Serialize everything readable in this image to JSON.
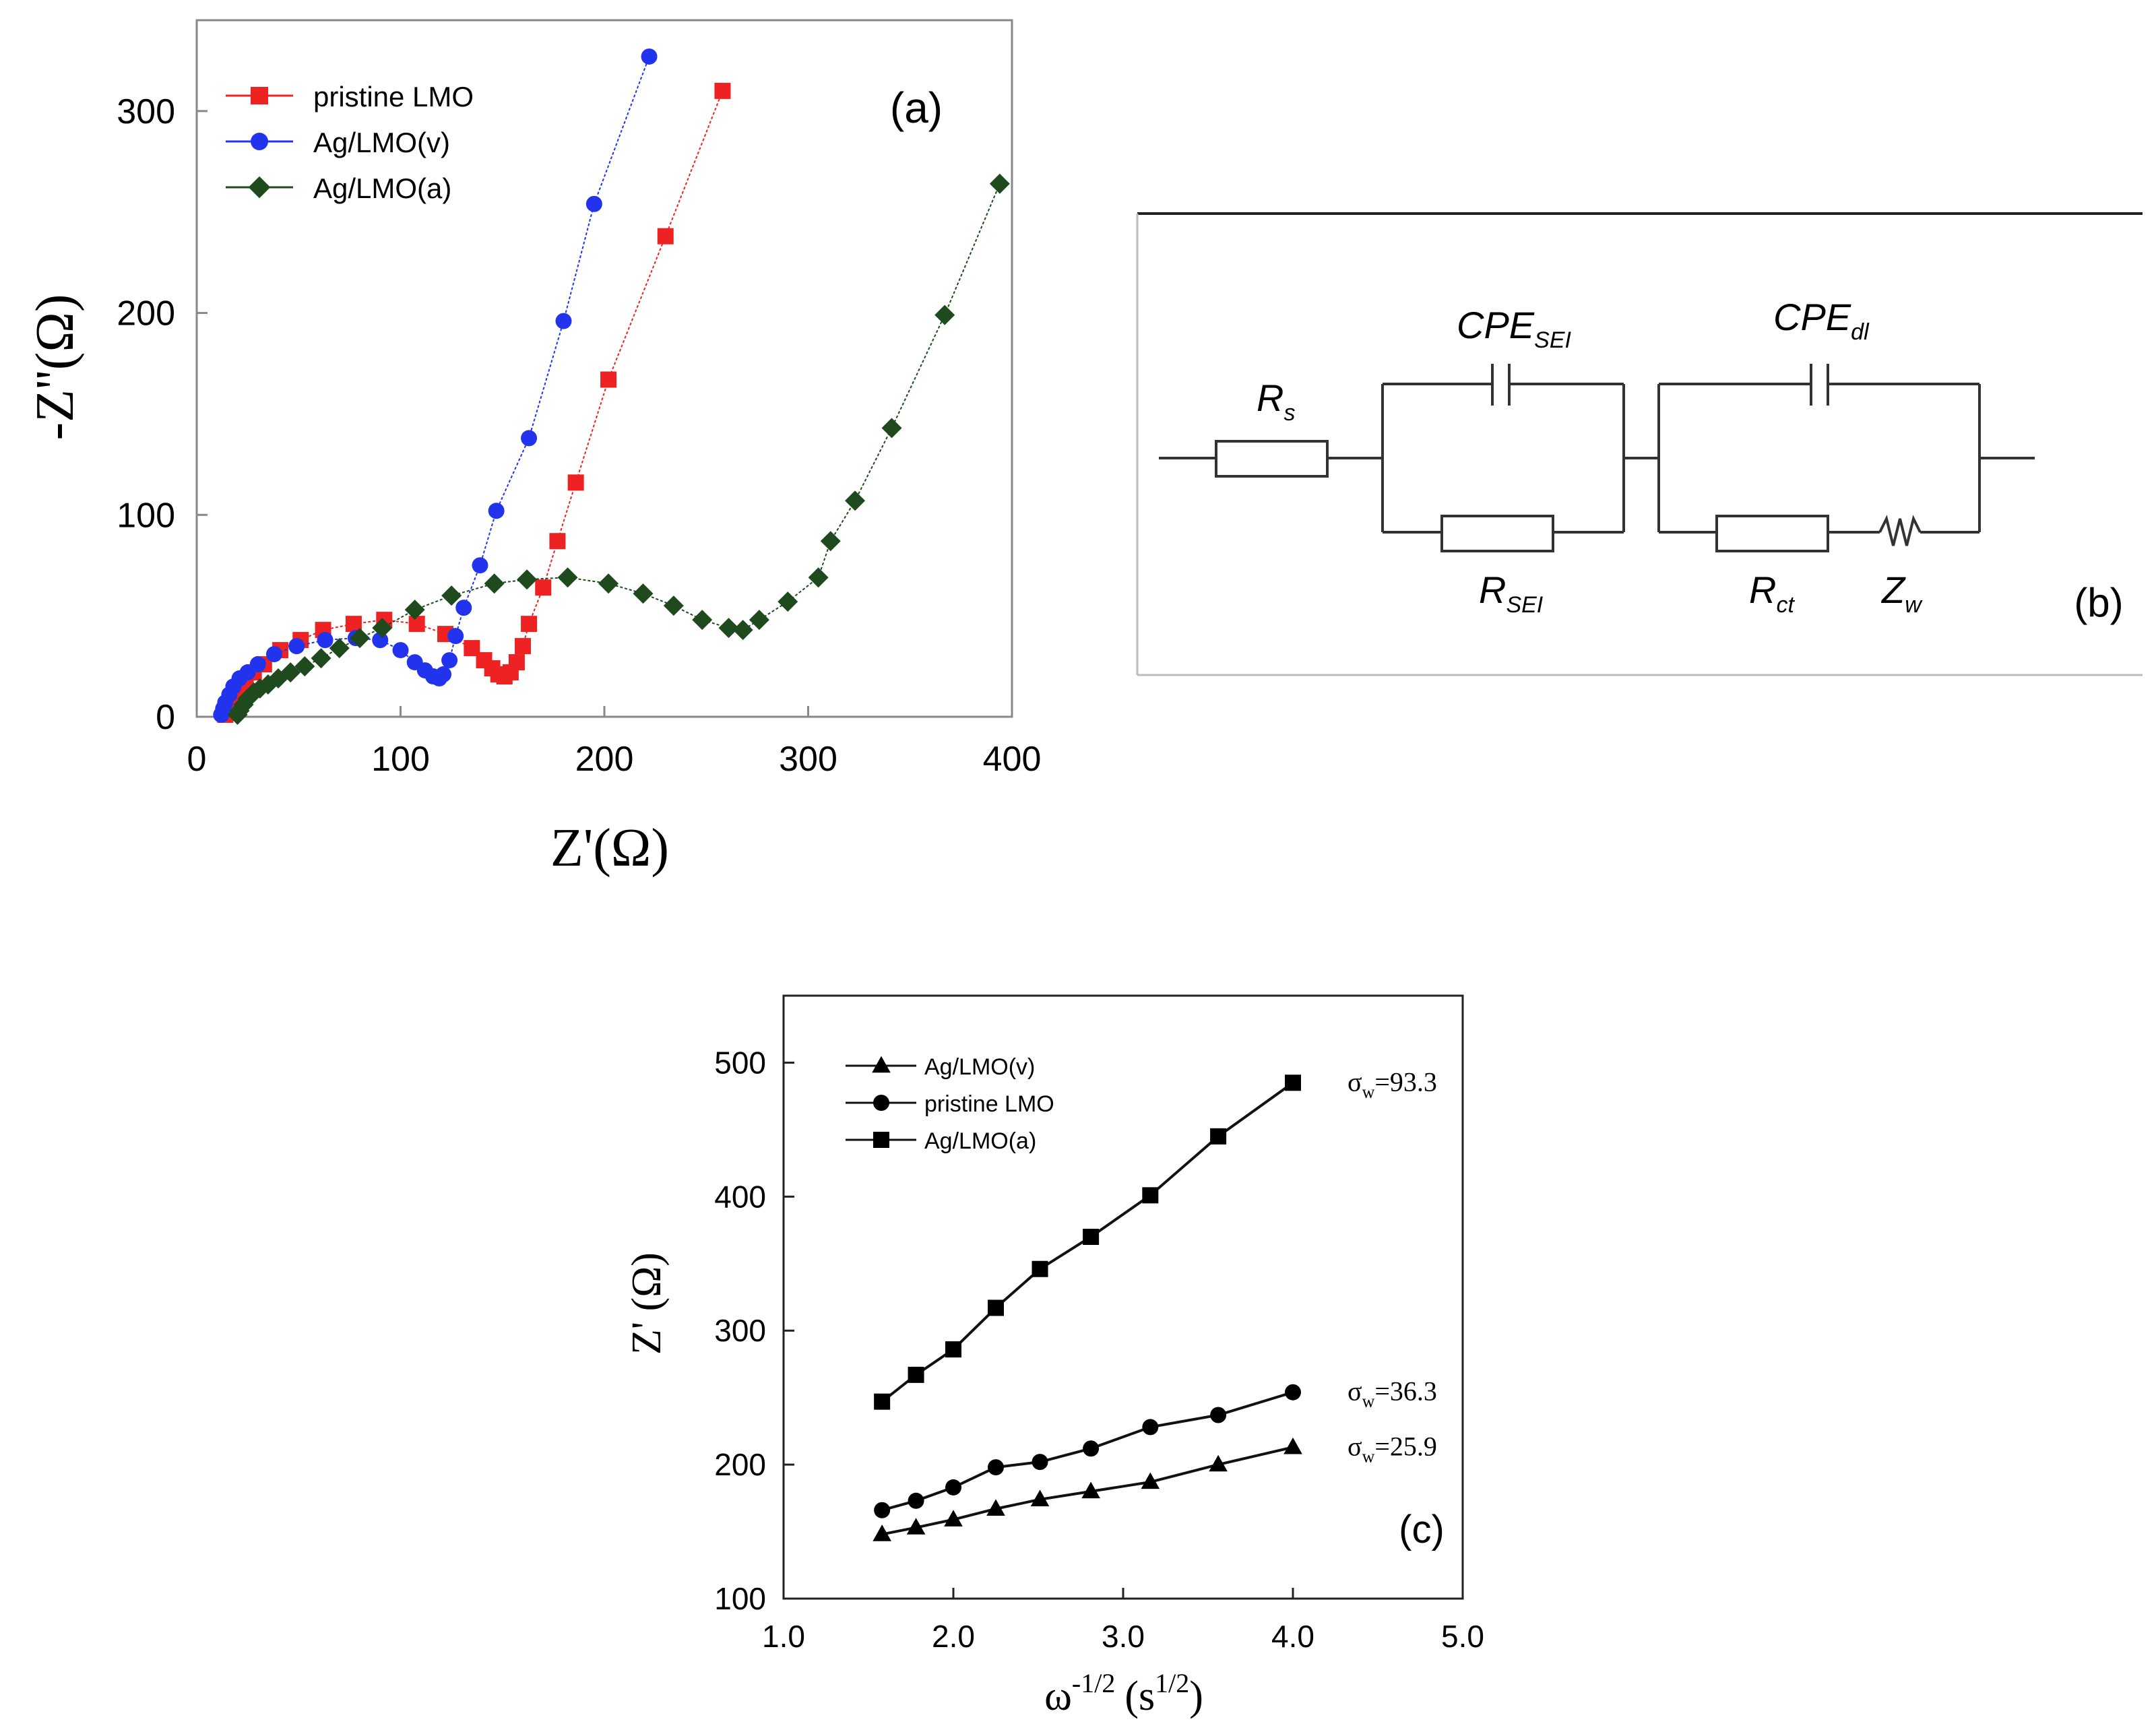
{
  "chart_data": [
    {
      "panel": "a",
      "type": "line",
      "panel_label": "(a)",
      "xlabel": "Z'(Ω)",
      "ylabel": "-Z''(Ω)",
      "xlim": [
        0,
        400
      ],
      "ylim": [
        0,
        345
      ],
      "xticks": [
        0,
        100,
        200,
        300,
        400
      ],
      "yticks": [
        0,
        100,
        200,
        300
      ],
      "legend_position": "top-left",
      "series": [
        {
          "name": "pristine LMO",
          "color": "#ee2222",
          "marker": "square",
          "points": [
            [
              14,
              1
            ],
            [
              16,
              5
            ],
            [
              18,
              10
            ],
            [
              21,
              14
            ],
            [
              24,
              18
            ],
            [
              28,
              22
            ],
            [
              33,
              26
            ],
            [
              41,
              33
            ],
            [
              51,
              38
            ],
            [
              62,
              43
            ],
            [
              77,
              46
            ],
            [
              92,
              48
            ],
            [
              108,
              46
            ],
            [
              122,
              41
            ],
            [
              135,
              34
            ],
            [
              141,
              28
            ],
            [
              145,
              24
            ],
            [
              148,
              21
            ],
            [
              151,
              20
            ],
            [
              154,
              22
            ],
            [
              157,
              27
            ],
            [
              160,
              35
            ],
            [
              163,
              46
            ],
            [
              170,
              64
            ],
            [
              177,
              87
            ],
            [
              186,
              116
            ],
            [
              202,
              167
            ],
            [
              230,
              238
            ],
            [
              258,
              310
            ]
          ]
        },
        {
          "name": "Ag/LMO(v)",
          "color": "#2233ee",
          "marker": "circle",
          "points": [
            [
              12,
              1
            ],
            [
              13,
              4
            ],
            [
              14,
              7
            ],
            [
              16,
              11
            ],
            [
              18,
              15
            ],
            [
              21,
              19
            ],
            [
              25,
              22
            ],
            [
              30,
              26
            ],
            [
              38,
              31
            ],
            [
              49,
              35
            ],
            [
              63,
              38
            ],
            [
              78,
              39
            ],
            [
              90,
              38
            ],
            [
              100,
              33
            ],
            [
              107,
              27
            ],
            [
              112,
              23
            ],
            [
              116,
              20
            ],
            [
              119,
              19
            ],
            [
              121,
              21
            ],
            [
              124,
              28
            ],
            [
              127,
              40
            ],
            [
              131,
              54
            ],
            [
              139,
              75
            ],
            [
              147,
              102
            ],
            [
              163,
              138
            ],
            [
              180,
              196
            ],
            [
              195,
              254
            ],
            [
              222,
              327
            ]
          ]
        },
        {
          "name": "Ag/LMO(a)",
          "color": "#1e4a1e",
          "marker": "diamond",
          "points": [
            [
              20,
              1
            ],
            [
              21,
              3
            ],
            [
              23,
              6
            ],
            [
              25,
              9
            ],
            [
              28,
              12
            ],
            [
              31,
              14
            ],
            [
              35,
              16
            ],
            [
              40,
              19
            ],
            [
              46,
              22
            ],
            [
              53,
              25
            ],
            [
              61,
              29
            ],
            [
              70,
              34
            ],
            [
              80,
              39
            ],
            [
              91,
              44
            ],
            [
              107,
              53
            ],
            [
              125,
              60
            ],
            [
              146,
              66
            ],
            [
              162,
              68
            ],
            [
              182,
              69
            ],
            [
              202,
              66
            ],
            [
              219,
              61
            ],
            [
              234,
              55
            ],
            [
              248,
              48
            ],
            [
              261,
              44
            ],
            [
              268,
              43
            ],
            [
              276,
              48
            ],
            [
              290,
              57
            ],
            [
              305,
              69
            ],
            [
              311,
              87
            ],
            [
              323,
              107
            ],
            [
              341,
              143
            ],
            [
              367,
              199
            ],
            [
              394,
              264
            ]
          ]
        }
      ]
    },
    {
      "panel": "b",
      "type": "circuit",
      "panel_label": "(b)",
      "components": [
        {
          "base": "R",
          "sub": "s"
        },
        {
          "base": "CPE",
          "sub": "SEI"
        },
        {
          "base": "R",
          "sub": "SEI"
        },
        {
          "base": "CPE",
          "sub": "dl"
        },
        {
          "base": "R",
          "sub": "ct"
        },
        {
          "base": "Z",
          "sub": "w"
        }
      ]
    },
    {
      "panel": "c",
      "type": "line",
      "panel_label": "(c)",
      "xlabel_base": "ω",
      "xlabel_exp": "-1/2",
      "xlabel_unit_base": "(s",
      "xlabel_unit_exp": "1/2",
      "xlabel_unit_close": ")",
      "ylabel": "Z' (Ω)",
      "xlim": [
        1.0,
        5.0
      ],
      "ylim": [
        100,
        550
      ],
      "xticks": [
        "1.0",
        "2.0",
        "3.0",
        "4.0",
        "5.0"
      ],
      "yticks": [
        100,
        200,
        300,
        400,
        500
      ],
      "legend_position": "top-left",
      "x": [
        1.58,
        1.78,
        2.0,
        2.25,
        2.51,
        2.81,
        3.16,
        3.56,
        4.0
      ],
      "series": [
        {
          "name": "Ag/LMO(v)",
          "marker": "triangle",
          "values": [
            148,
            153,
            159,
            167,
            174,
            180,
            187,
            200,
            213
          ],
          "annotation_symbol": "σ",
          "annotation_sub": "w",
          "annotation_value": "=25.9"
        },
        {
          "name": "pristine LMO",
          "marker": "circle",
          "values": [
            166,
            173,
            183,
            198,
            202,
            212,
            228,
            237,
            254
          ],
          "annotation_symbol": "σ",
          "annotation_sub": "w",
          "annotation_value": "=36.3"
        },
        {
          "name": "Ag/LMO(a)",
          "marker": "square",
          "values": [
            247,
            267,
            286,
            317,
            346,
            370,
            401,
            445,
            485
          ],
          "annotation_symbol": "σ",
          "annotation_sub": "w",
          "annotation_value": "=93.3"
        }
      ]
    }
  ]
}
